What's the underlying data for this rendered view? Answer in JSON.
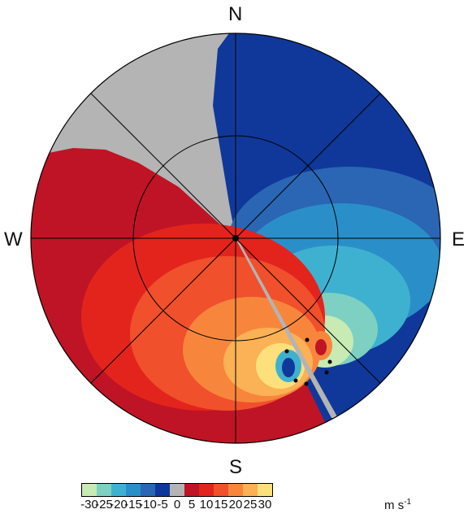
{
  "compass": {
    "north": "N",
    "south": "S",
    "west": "W",
    "east": "E"
  },
  "colorbar": {
    "colors": [
      "#c7ebb3",
      "#7ed0c2",
      "#3fb1d0",
      "#2a8fc9",
      "#2a66b3",
      "#10389a",
      "#b4b4b4",
      "#bf1425",
      "#e3241d",
      "#f0502c",
      "#f7863c",
      "#fbb155",
      "#fde07b"
    ],
    "ticks": [
      "-30",
      "-25",
      "-20",
      "-15",
      "-10",
      "-5",
      "0",
      "5",
      "10",
      "15",
      "20",
      "25",
      "30"
    ],
    "unit_base": "m s",
    "unit_exp": "-1"
  },
  "field": {
    "gray": "#b4b4b4",
    "navy": "#10389a",
    "dark_red": "#bf1425"
  }
}
